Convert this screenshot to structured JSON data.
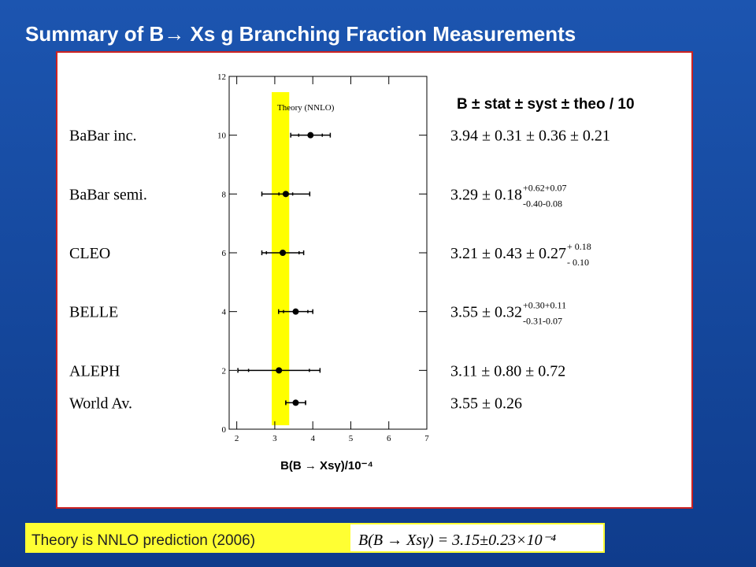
{
  "title": "Summary of B→ Xs g Branching Fraction Measurements",
  "footer": {
    "text": "Theory is NNLO prediction (2006)",
    "formula": "B(B → Xsγ) = 3.15±0.23×10⁻⁴"
  },
  "chart_data": {
    "type": "errorbar",
    "column_header": "B  ± stat ± syst ± theo / 10",
    "x_label": "B(B → Xsγ)/10⁻⁴",
    "xlim": [
      1.8,
      7
    ],
    "xticks": [
      2,
      3,
      4,
      5,
      6,
      7
    ],
    "ylim": [
      0,
      12
    ],
    "yticks": [
      0,
      2,
      4,
      6,
      8,
      10,
      12
    ],
    "theory": {
      "label": "Theory (NNLO)",
      "value": 3.15,
      "error": 0.23,
      "color": "#ffff00"
    },
    "categories": [
      "BaBar inc.",
      "BaBar semi.",
      "CLEO",
      "BELLE",
      "ALEPH",
      "World Av."
    ],
    "positions": [
      10,
      8,
      6,
      4,
      2,
      0.9
    ],
    "values": [
      3.94,
      3.29,
      3.21,
      3.55,
      3.11,
      3.55
    ],
    "stat_errors": [
      0.31,
      0.18,
      0.43,
      0.32,
      0.8,
      0.26
    ],
    "errors": [
      0.52,
      0.63,
      0.55,
      0.45,
      1.08,
      0.26
    ],
    "value_labels": [
      "3.94 ± 0.31 ± 0.36 ± 0.21",
      "3.29 ± 0.18",
      "3.21 ± 0.43 ± 0.27",
      "3.55 ± 0.32",
      "3.11 ± 0.80 ± 0.72",
      "3.55 ± 0.26"
    ],
    "label_sup": [
      null,
      "+0.62+0.07",
      "+ 0.18",
      "+0.30+0.11",
      null,
      null
    ],
    "label_sub": [
      null,
      "-0.40-0.08",
      "- 0.10",
      "-0.31-0.07",
      null,
      null
    ],
    "color": "#000000"
  }
}
